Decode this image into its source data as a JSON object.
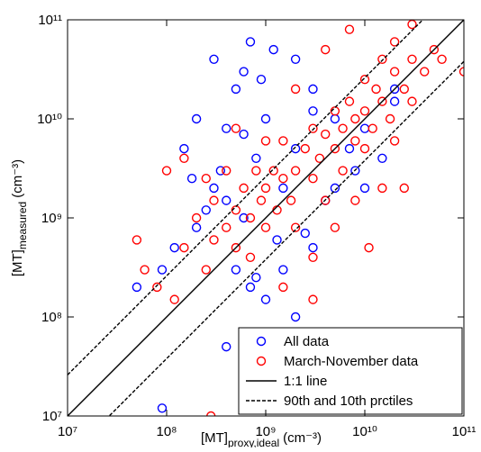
{
  "chart_data": {
    "type": "scatter",
    "x_label": {
      "main": "[MT]",
      "sub": "proxy,ideal",
      "unit": "(cm⁻³)"
    },
    "y_label": {
      "main": "[MT]",
      "sub": "measured",
      "unit": "(cm⁻³)"
    },
    "xscale": "log",
    "yscale": "log",
    "xlim": [
      10000000.0,
      100000000000.0
    ],
    "ylim": [
      10000000.0,
      100000000000.0
    ],
    "xticks": [
      {
        "value": 10000000.0,
        "label": "10⁷"
      },
      {
        "value": 100000000.0,
        "label": "10⁸"
      },
      {
        "value": 1000000000.0,
        "label": "10⁹"
      },
      {
        "value": 10000000000.0,
        "label": "10¹⁰"
      },
      {
        "value": 100000000000.0,
        "label": "10¹¹"
      }
    ],
    "yticks": [
      {
        "value": 10000000.0,
        "label": "10⁷"
      },
      {
        "value": 100000000.0,
        "label": "10⁸"
      },
      {
        "value": 1000000000.0,
        "label": "10⁹"
      },
      {
        "value": 10000000000.0,
        "label": "10¹⁰"
      },
      {
        "value": 100000000000.0,
        "label": "10¹¹"
      }
    ],
    "legend": "lower right",
    "series": [
      {
        "name": "All data",
        "color": "#0000ff",
        "x": [
          90000000.0,
          300000000.0,
          500000000.0,
          700000000.0,
          150000000.0,
          200000000.0,
          400000000.0,
          600000000.0,
          1000000000.0,
          1200000000.0,
          2000000000.0,
          3000000000.0,
          800000000.0,
          300000000.0,
          200000000.0,
          500000000.0,
          700000000.0,
          1000000000.0,
          1500000000.0,
          2000000000.0,
          3000000000.0,
          5000000000.0,
          8000000000.0,
          10000000000.0,
          20000000000.0,
          5000000000.0,
          600000000.0,
          90000000.0,
          120000000.0,
          50000000.0,
          400000000.0,
          10000000000.0,
          15000000000.0,
          20000000000.0,
          7000000000.0,
          4000000000.0,
          1300000000.0,
          250000000.0,
          350000000.0,
          180000000.0,
          600000000.0,
          900000000.0,
          2500000000.0,
          800000000.0,
          1100000000.0,
          3000000000.0,
          1500000000.0,
          400000000.0,
          2000000000.0
        ],
        "y": [
          12000000.0,
          40000000000.0,
          20000000000.0,
          60000000000.0,
          5000000000.0,
          10000000000.0,
          8000000000.0,
          30000000000.0,
          10000000000.0,
          50000000000.0,
          40000000000.0,
          20000000000.0,
          4000000000.0,
          2000000000.0,
          800000000.0,
          300000000.0,
          200000000.0,
          150000000.0,
          300000000.0,
          100000000.0,
          500000000.0,
          2000000000.0,
          3000000000.0,
          8000000000.0,
          15000000000.0,
          10000000000.0,
          1000000000.0,
          300000000.0,
          500000000.0,
          200000000.0,
          50000000.0,
          2000000000.0,
          4000000000.0,
          20000000000.0,
          5000000000.0,
          1500000000.0,
          600000000.0,
          1200000000.0,
          3000000000.0,
          2500000000.0,
          7000000000.0,
          25000000000.0,
          700000000.0,
          250000000.0,
          40000000.0,
          12000000000.0,
          2000000000.0,
          1500000000.0,
          5000000000.0
        ]
      },
      {
        "name": "March-November data",
        "color": "#ff0000",
        "x": [
          50000000.0,
          60000000.0,
          80000000.0,
          100000000.0,
          120000000.0,
          150000000.0,
          200000000.0,
          250000000.0,
          300000000.0,
          300000000.0,
          400000000.0,
          400000000.0,
          500000000.0,
          500000000.0,
          600000000.0,
          700000000.0,
          700000000.0,
          800000000.0,
          900000000.0,
          1000000000.0,
          1000000000.0,
          1200000000.0,
          1300000000.0,
          1500000000.0,
          1500000000.0,
          1800000000.0,
          2000000000.0,
          2000000000.0,
          2500000000.0,
          3000000000.0,
          3000000000.0,
          3500000000.0,
          4000000000.0,
          4000000000.0,
          5000000000.0,
          5000000000.0,
          6000000000.0,
          6000000000.0,
          7000000000.0,
          8000000000.0,
          8000000000.0,
          10000000000.0,
          10000000000.0,
          10000000000.0,
          12000000000.0,
          13000000000.0,
          15000000000.0,
          15000000000.0,
          18000000000.0,
          20000000000.0,
          20000000000.0,
          25000000000.0,
          30000000000.0,
          30000000000.0,
          40000000000.0,
          50000000000.0,
          60000000000.0,
          100000000000.0,
          7000000000.0,
          4000000000.0,
          2000000000.0,
          1000000000.0,
          500000000.0,
          250000000.0,
          150000000.0,
          30000000000.0,
          20000000000.0,
          15000000000.0,
          8000000000.0,
          5000000000.0,
          3000000000.0,
          1500000000.0,
          25000000000.0,
          11000000000.0,
          3000000000.0,
          280000000.0,
          600000000.0,
          1500000000.0
        ],
        "y": [
          600000000.0,
          300000000.0,
          200000000.0,
          3000000000.0,
          150000000.0,
          500000000.0,
          1000000000.0,
          300000000.0,
          600000000.0,
          1500000000.0,
          800000000.0,
          3000000000.0,
          1200000000.0,
          500000000.0,
          2000000000.0,
          1000000000.0,
          400000000.0,
          3000000000.0,
          1500000000.0,
          2000000000.0,
          800000000.0,
          3000000000.0,
          1200000000.0,
          2500000000.0,
          6000000000.0,
          1500000000.0,
          3000000000.0,
          800000000.0,
          5000000000.0,
          2500000000.0,
          8000000000.0,
          4000000000.0,
          1500000000.0,
          7000000000.0,
          5000000000.0,
          12000000000.0,
          3000000000.0,
          8000000000.0,
          15000000000.0,
          6000000000.0,
          10000000000.0,
          12000000000.0,
          25000000000.0,
          5000000000.0,
          8000000000.0,
          20000000000.0,
          15000000000.0,
          40000000000.0,
          10000000000.0,
          30000000000.0,
          60000000000.0,
          20000000000.0,
          40000000000.0,
          90000000000.0,
          30000000000.0,
          50000000000.0,
          40000000000.0,
          30000000000.0,
          80000000000.0,
          50000000000.0,
          20000000000.0,
          6000000000.0,
          8000000000.0,
          2500000000.0,
          4000000000.0,
          15000000000.0,
          6000000000.0,
          2000000000.0,
          1500000000.0,
          800000000.0,
          400000000.0,
          200000000.0,
          2000000000.0,
          500000000.0,
          150000000.0,
          10000000.0,
          60000000.0,
          30000000.0
        ]
      }
    ],
    "lines": [
      {
        "name": "1:1 line",
        "style": "solid",
        "color": "#000000",
        "x": [
          10000000.0,
          100000000000.0
        ],
        "y": [
          10000000.0,
          100000000000.0
        ]
      },
      {
        "name": "90th and 10th prctiles",
        "style": "dashed",
        "color": "#000000",
        "pieces": [
          {
            "x": [
              10000000.0,
              100000000000.0
            ],
            "y": [
              26000000.0,
              260000000000.0
            ]
          },
          {
            "x": [
              10000000.0,
              100000000000.0
            ],
            "y": [
              3800000.0,
              38000000000.0
            ]
          }
        ]
      }
    ]
  }
}
